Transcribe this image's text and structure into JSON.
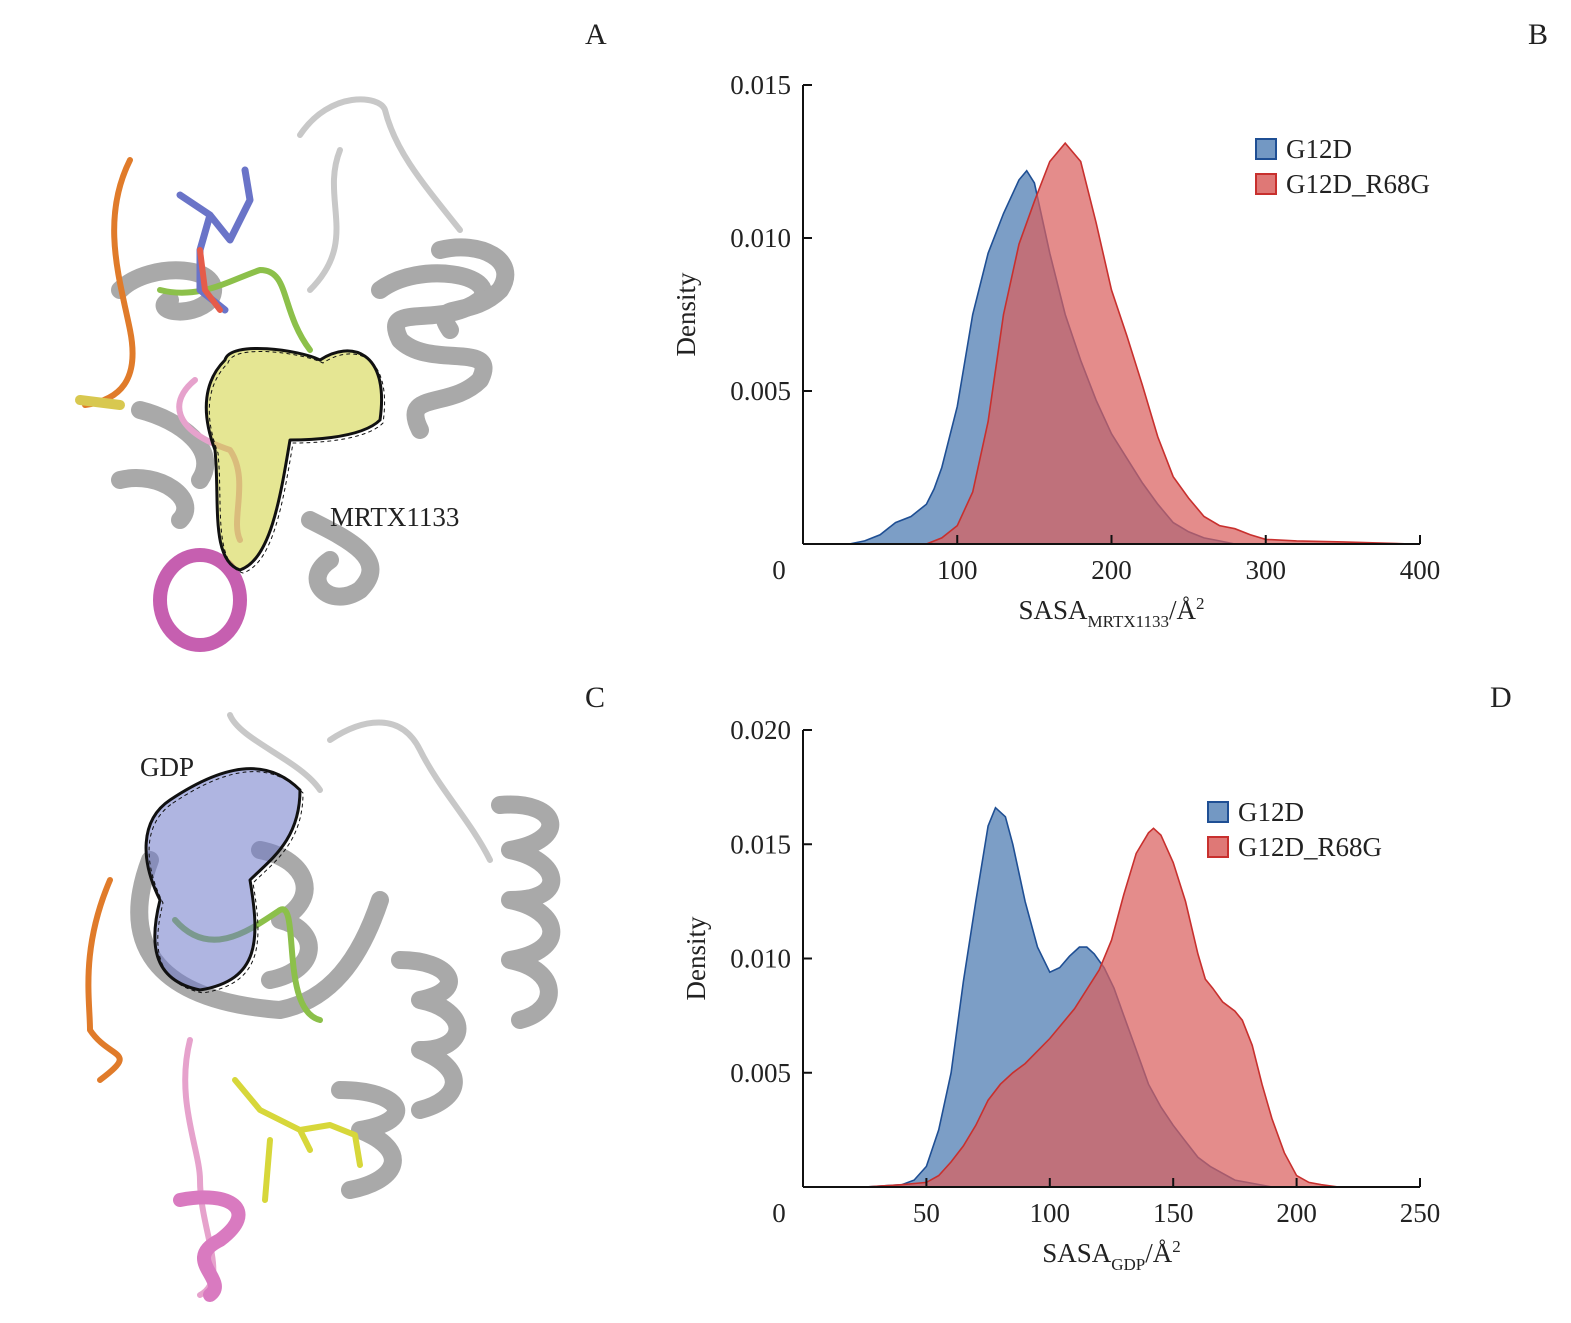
{
  "panels": {
    "a": "A",
    "b": "B",
    "c": "C",
    "d": "D"
  },
  "structures": {
    "a_label": "MRTX1133",
    "c_label": "GDP"
  },
  "colors": {
    "g12d": "#5b86b8",
    "g12d_r68g": "#d9605e",
    "g12d_line": "#1f4f94",
    "g12d_r68g_line": "#c8302e"
  },
  "chart_data": [
    {
      "id": "B",
      "type": "area",
      "title": "",
      "xlabel": "SASA",
      "xlabel_sub": "MRTX1133",
      "xlabel_unit": "/Å",
      "xlabel_sup": "2",
      "ylabel": "Density",
      "xlim": [
        0,
        400
      ],
      "ylim": [
        0,
        0.015
      ],
      "xticks": [
        "0",
        "100",
        "200",
        "300",
        "400"
      ],
      "xtick_values": [
        0,
        100,
        200,
        300,
        400
      ],
      "yticks": [
        "0.005",
        "0.010",
        "0.015"
      ],
      "ytick_values": [
        0.005,
        0.01,
        0.015
      ],
      "legend_position": "top-right",
      "series": [
        {
          "name": "G12D",
          "x": [
            30,
            40,
            50,
            60,
            70,
            80,
            85,
            90,
            100,
            110,
            120,
            130,
            140,
            145,
            150,
            160,
            170,
            180,
            190,
            200,
            210,
            220,
            230,
            240,
            250,
            260,
            270,
            280
          ],
          "y": [
            0,
            0.0001,
            0.0003,
            0.0007,
            0.0009,
            0.0013,
            0.0018,
            0.0025,
            0.0045,
            0.0075,
            0.0095,
            0.0108,
            0.0119,
            0.0122,
            0.0118,
            0.0095,
            0.0075,
            0.006,
            0.0047,
            0.0036,
            0.0028,
            0.002,
            0.0013,
            0.0007,
            0.0004,
            0.0002,
            0.0001,
            0
          ]
        },
        {
          "name": "G12D_R68G",
          "x": [
            80,
            90,
            100,
            110,
            120,
            130,
            140,
            150,
            160,
            170,
            180,
            190,
            200,
            210,
            220,
            230,
            240,
            250,
            260,
            270,
            280,
            290,
            300,
            320,
            350,
            395
          ],
          "y": [
            0,
            0.0002,
            0.0006,
            0.0017,
            0.004,
            0.0075,
            0.0098,
            0.0112,
            0.0125,
            0.0131,
            0.0125,
            0.0105,
            0.0083,
            0.0068,
            0.0052,
            0.0035,
            0.0022,
            0.0015,
            0.0009,
            0.0006,
            0.0005,
            0.0003,
            0.00015,
            0.0001,
            7e-05,
            0
          ]
        }
      ]
    },
    {
      "id": "D",
      "type": "area",
      "title": "",
      "xlabel": "SASA",
      "xlabel_sub": "GDP",
      "xlabel_unit": "/Å",
      "xlabel_sup": "2",
      "ylabel": "Density",
      "xlim": [
        0,
        250
      ],
      "ylim": [
        0,
        0.02
      ],
      "xticks": [
        "0",
        "50",
        "100",
        "150",
        "200",
        "250"
      ],
      "xtick_values": [
        0,
        50,
        100,
        150,
        200,
        250
      ],
      "yticks": [
        "0.005",
        "0.010",
        "0.015",
        "0.020"
      ],
      "ytick_values": [
        0.005,
        0.01,
        0.015,
        0.02
      ],
      "legend_position": "top-right",
      "series": [
        {
          "name": "G12D",
          "x": [
            25,
            40,
            45,
            50,
            55,
            60,
            65,
            70,
            75,
            78,
            82,
            85,
            90,
            95,
            100,
            104,
            108,
            112,
            115,
            118,
            122,
            126,
            130,
            135,
            140,
            145,
            150,
            155,
            160,
            165,
            170,
            175,
            180,
            190
          ],
          "y": [
            0,
            0.0001,
            0.0003,
            0.0009,
            0.0025,
            0.005,
            0.009,
            0.0125,
            0.0158,
            0.0166,
            0.0162,
            0.015,
            0.0125,
            0.0105,
            0.0094,
            0.0096,
            0.0101,
            0.0105,
            0.0105,
            0.0102,
            0.0096,
            0.0087,
            0.0075,
            0.006,
            0.0045,
            0.0035,
            0.0027,
            0.002,
            0.0013,
            0.0009,
            0.0006,
            0.0003,
            0.0002,
            0
          ]
        },
        {
          "name": "G12D_R68G",
          "x": [
            25,
            40,
            50,
            55,
            60,
            65,
            70,
            75,
            80,
            85,
            90,
            100,
            110,
            120,
            125,
            130,
            135,
            140,
            142,
            145,
            150,
            155,
            160,
            163,
            166,
            170,
            175,
            178,
            182,
            186,
            190,
            195,
            200,
            205,
            210,
            217
          ],
          "y": [
            0,
            0.0001,
            0.0002,
            0.0005,
            0.0011,
            0.0018,
            0.0027,
            0.0038,
            0.0045,
            0.005,
            0.0054,
            0.0065,
            0.0078,
            0.0095,
            0.0108,
            0.0128,
            0.0146,
            0.0155,
            0.0157,
            0.0154,
            0.0142,
            0.0125,
            0.0102,
            0.0091,
            0.0087,
            0.0081,
            0.0077,
            0.0073,
            0.0062,
            0.0045,
            0.003,
            0.0015,
            0.0005,
            0.0002,
            0.0001,
            0
          ]
        }
      ]
    }
  ]
}
